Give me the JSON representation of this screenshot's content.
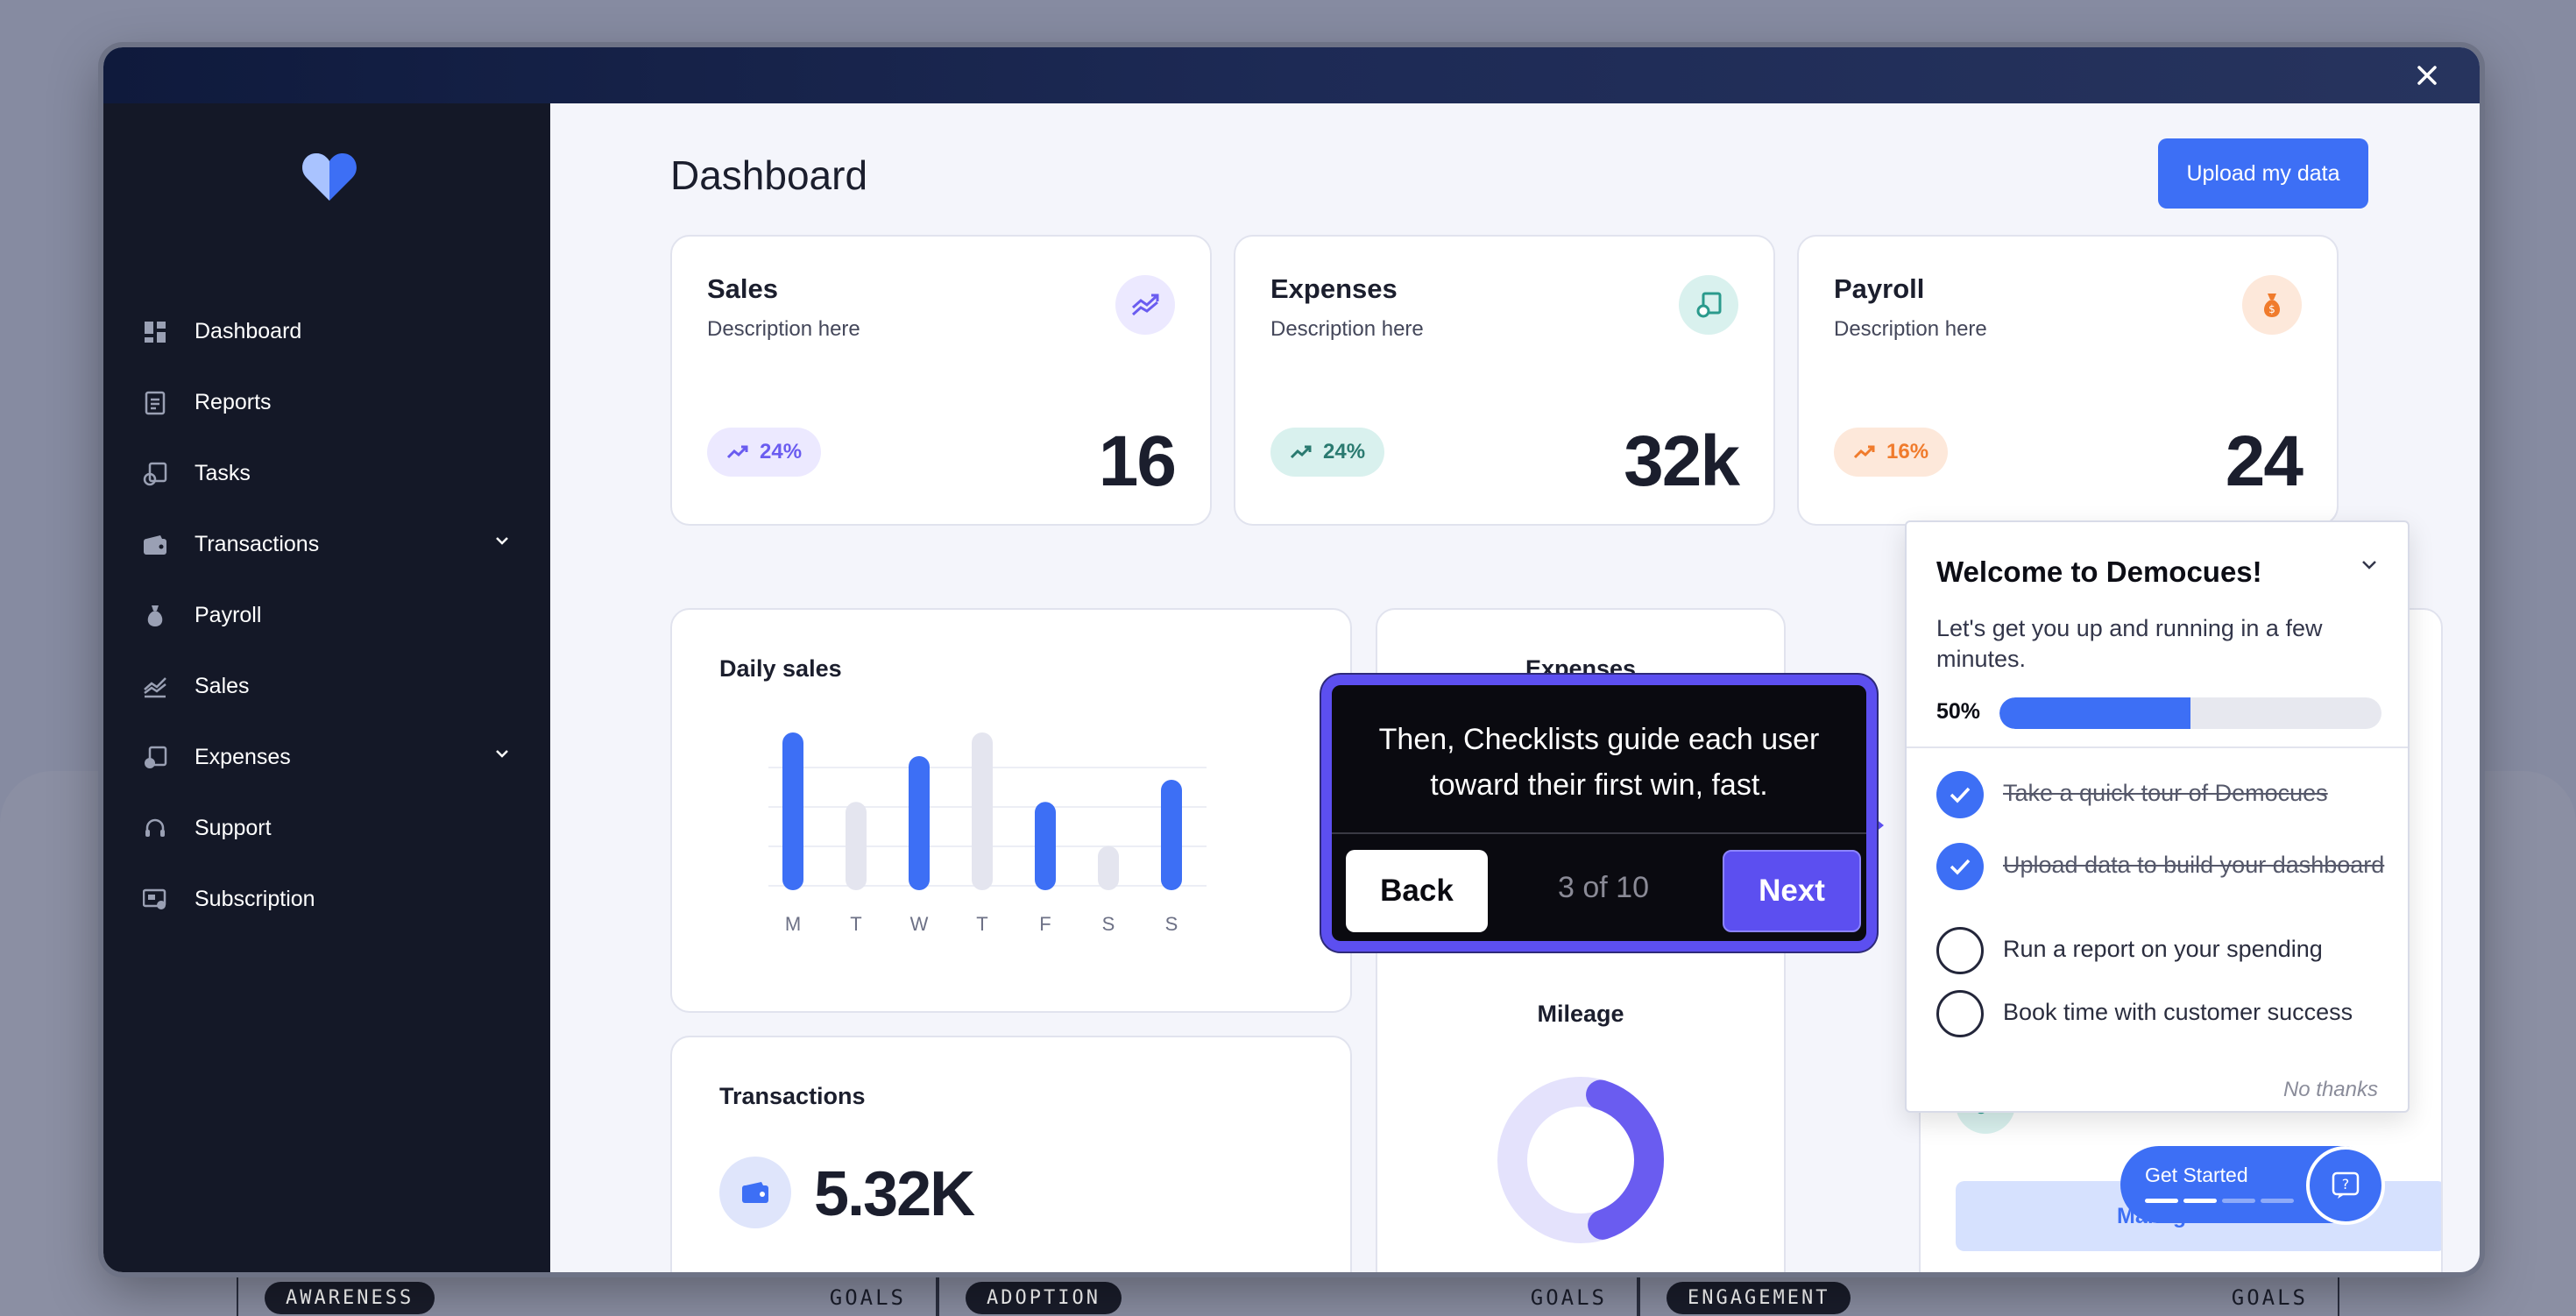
{
  "window": {
    "close_icon": "close-icon"
  },
  "sidebar": {
    "logo_icon": "heart-logo-icon",
    "items": [
      {
        "label": "Dashboard",
        "icon": "dashboard-icon"
      },
      {
        "label": "Reports",
        "icon": "reports-icon"
      },
      {
        "label": "Tasks",
        "icon": "tasks-icon"
      },
      {
        "label": "Transactions",
        "icon": "wallet-icon",
        "has_submenu": true
      },
      {
        "label": "Payroll",
        "icon": "money-bag-icon"
      },
      {
        "label": "Sales",
        "icon": "sales-chart-icon"
      },
      {
        "label": "Expenses",
        "icon": "receipt-icon",
        "has_submenu": true
      },
      {
        "label": "Support",
        "icon": "headset-icon"
      },
      {
        "label": "Subscription",
        "icon": "subscription-icon"
      }
    ]
  },
  "header": {
    "title": "Dashboard",
    "upload_label": "Upload my data"
  },
  "stats": [
    {
      "title": "Sales",
      "description": "Description here",
      "change": "24%",
      "value": "16",
      "color": "#6a5cf0",
      "tint": "#ece9ff"
    },
    {
      "title": "Expenses",
      "description": "Description here",
      "change": "24%",
      "value": "32k",
      "color": "#2a9a8c",
      "tint": "#d9f1ee"
    },
    {
      "title": "Payroll",
      "description": "Description here",
      "change": "16%",
      "value": "24",
      "color": "#f07b2c",
      "tint": "#fde8da"
    }
  ],
  "daily_sales": {
    "title": "Daily sales",
    "chart_data": {
      "type": "bar",
      "categories": [
        "M",
        "T",
        "W",
        "T",
        "F",
        "S",
        "S"
      ],
      "values": [
        100,
        56,
        85,
        100,
        56,
        28,
        70
      ],
      "highlighted": [
        true,
        false,
        true,
        false,
        true,
        false,
        true
      ],
      "ylim": [
        0,
        100
      ]
    }
  },
  "expenses_panel": {
    "title": "Expenses"
  },
  "mileage_panel": {
    "title": "Mileage",
    "chart_data": {
      "type": "pie",
      "values": [
        40,
        60
      ],
      "colors": [
        "#6a5cf0",
        "#e4e2fc"
      ]
    }
  },
  "transactions_panel": {
    "title": "Transactions",
    "value": "5.32K"
  },
  "tasks_panel": {
    "manage_label": "Manage ta"
  },
  "tour": {
    "text": "Then, Checklists guide each user toward their first win, fast.",
    "back_label": "Back",
    "step": "3 of 10",
    "next_label": "Next"
  },
  "checklist": {
    "title": "Welcome to Democues!",
    "subtitle": "Let's get you up and running in a few minutes.",
    "progress_label": "50%",
    "progress": 0.5,
    "items": [
      {
        "label": "Take a quick tour of Democues",
        "done": true
      },
      {
        "label": "Upload data to build your dashboard",
        "done": true
      },
      {
        "label": "Run a report on your spending",
        "done": false
      },
      {
        "label": "Book time with customer success",
        "done": false
      }
    ],
    "dismiss_label": "No thanks"
  },
  "launcher": {
    "label": "Get Started",
    "segments_done": 2,
    "segments_total": 4,
    "help_icon": "help-chat-icon"
  },
  "bottom_strip": [
    {
      "tag": "AWARENESS",
      "goal": "GOALS"
    },
    {
      "tag": "ADOPTION",
      "goal": "GOALS"
    },
    {
      "tag": "ENGAGEMENT",
      "goal": "GOALS"
    }
  ]
}
